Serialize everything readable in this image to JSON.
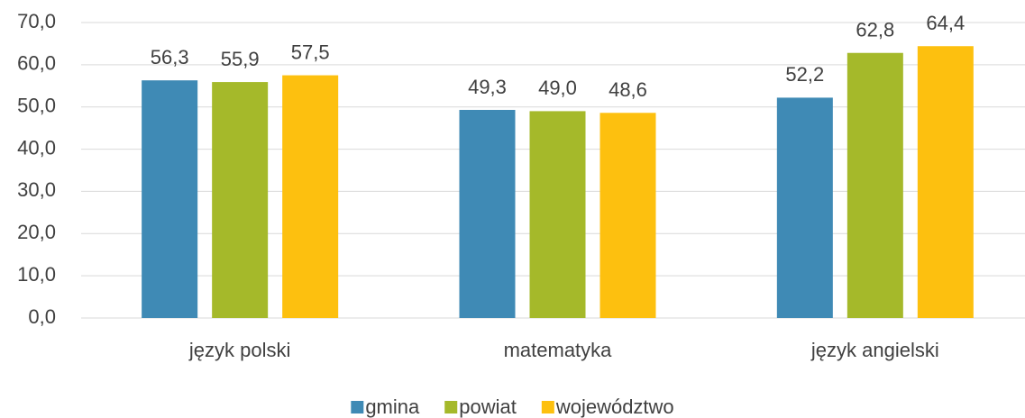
{
  "chart_data": {
    "type": "bar",
    "categories": [
      "język polski",
      "matematyka",
      "język angielski"
    ],
    "series": [
      {
        "name": "gmina",
        "color": "#3f8ab5",
        "values": [
          56.3,
          49.3,
          52.2
        ],
        "value_labels": [
          "56,3",
          "49,3",
          "52,2"
        ]
      },
      {
        "name": "powiat",
        "color": "#a5b92a",
        "values": [
          55.9,
          49.0,
          62.8
        ],
        "value_labels": [
          "55,9",
          "49,0",
          "62,8"
        ]
      },
      {
        "name": "województwo",
        "color": "#fdc00f",
        "values": [
          57.5,
          48.6,
          64.4
        ],
        "value_labels": [
          "57,5",
          "48,6",
          "64,4"
        ]
      }
    ],
    "ylim": [
      0,
      70
    ],
    "yticks": [
      {
        "value": 0,
        "label": "0,0"
      },
      {
        "value": 10,
        "label": "10,0"
      },
      {
        "value": 20,
        "label": "20,0"
      },
      {
        "value": 30,
        "label": "30,0"
      },
      {
        "value": 40,
        "label": "40,0"
      },
      {
        "value": 50,
        "label": "50,0"
      },
      {
        "value": 60,
        "label": "60,0"
      },
      {
        "value": 70,
        "label": "70,0"
      }
    ],
    "grid": true,
    "legend": "bottom"
  }
}
